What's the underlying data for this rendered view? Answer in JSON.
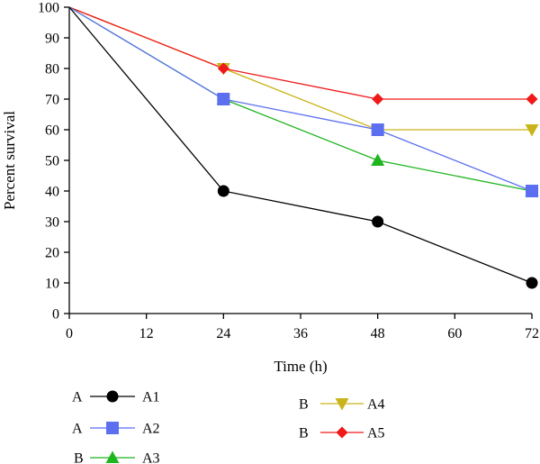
{
  "chart_data": {
    "type": "line",
    "title": "",
    "xlabel": "Time (h)",
    "ylabel": "Percent survival",
    "x": [
      0,
      24,
      48,
      72
    ],
    "xlim": [
      0,
      72
    ],
    "ylim": [
      0,
      100
    ],
    "xticks": [
      0,
      12,
      24,
      36,
      48,
      60,
      72
    ],
    "yticks": [
      0,
      10,
      20,
      30,
      40,
      50,
      60,
      70,
      80,
      90,
      100
    ],
    "grid": false,
    "legend_position": "bottom",
    "series": [
      {
        "name": "A1",
        "group": "A",
        "marker": "circle",
        "color": "#000000",
        "values": [
          100,
          40,
          30,
          10
        ]
      },
      {
        "name": "A2",
        "group": "A",
        "marker": "square",
        "color": "#5b6ff0",
        "values": [
          100,
          70,
          60,
          40
        ]
      },
      {
        "name": "A3",
        "group": "B",
        "marker": "triangle-up",
        "color": "#1fb51f",
        "values": [
          100,
          70,
          50,
          40
        ]
      },
      {
        "name": "A4",
        "group": "B",
        "marker": "triangle-down",
        "color": "#c9b41a",
        "values": [
          100,
          80,
          60,
          60
        ]
      },
      {
        "name": "A5",
        "group": "B",
        "marker": "diamond",
        "color": "#f01818",
        "values": [
          100,
          80,
          70,
          70
        ]
      }
    ]
  }
}
